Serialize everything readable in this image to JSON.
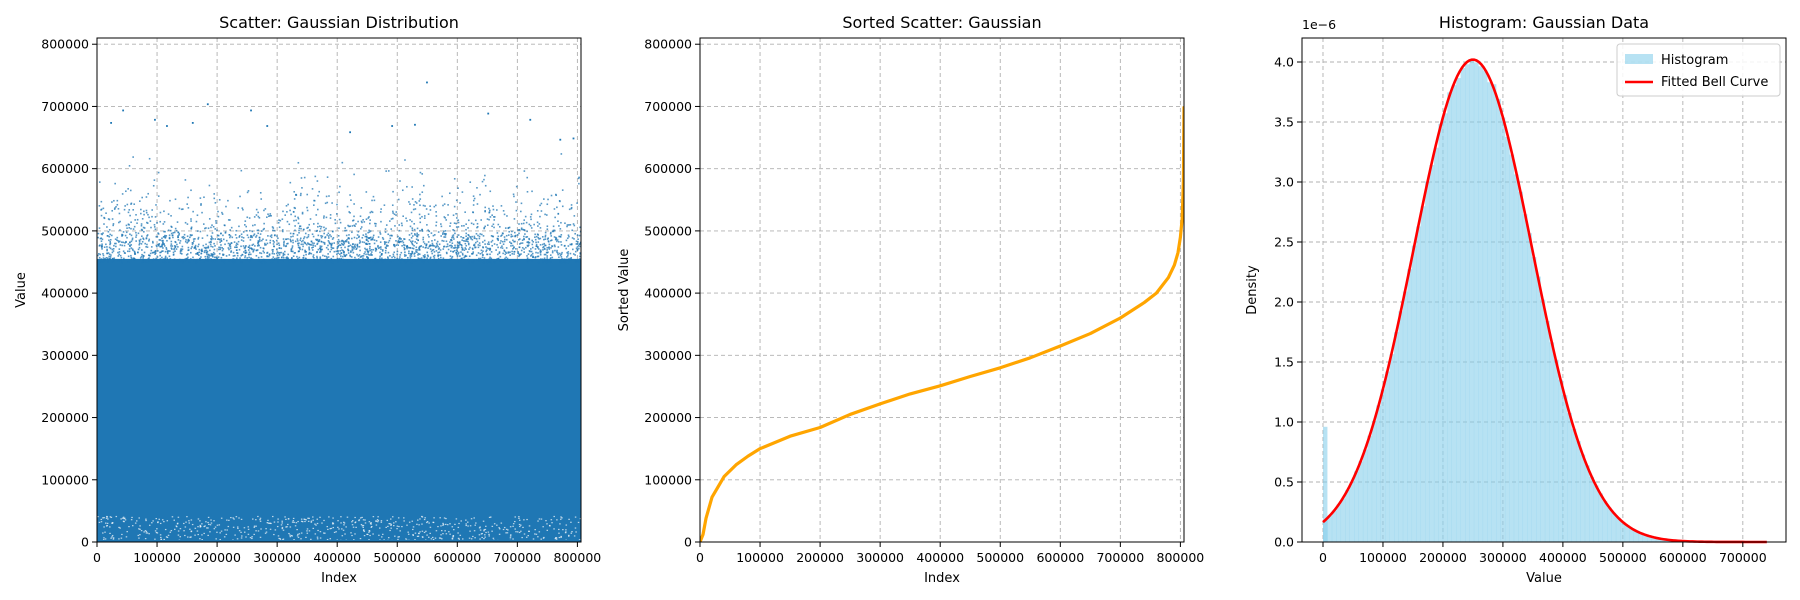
{
  "chart_data": [
    {
      "type": "scatter",
      "title": "Scatter: Gaussian Distribution",
      "xlabel": "Index",
      "ylabel": "Value",
      "xlim": [
        0,
        806000
      ],
      "ylim": [
        0,
        810000
      ],
      "xticks": [
        0,
        100000,
        200000,
        300000,
        400000,
        500000,
        600000,
        700000,
        800000
      ],
      "yticks": [
        0,
        100000,
        200000,
        300000,
        400000,
        500000,
        600000,
        700000,
        800000
      ],
      "grid": true,
      "colors": {
        "points": "#1f77b4"
      },
      "distribution": {
        "mean": 250000,
        "std": 100000,
        "clipped_at": 0,
        "n_points": 806000
      },
      "outliers": [
        {
          "x": 22000,
          "y": 675000
        },
        {
          "x": 42000,
          "y": 695000
        },
        {
          "x": 95000,
          "y": 680000
        },
        {
          "x": 115000,
          "y": 670000
        },
        {
          "x": 158000,
          "y": 675000
        },
        {
          "x": 183000,
          "y": 705000
        },
        {
          "x": 255000,
          "y": 695000
        },
        {
          "x": 282000,
          "y": 670000
        },
        {
          "x": 420000,
          "y": 660000
        },
        {
          "x": 490000,
          "y": 670000
        },
        {
          "x": 528000,
          "y": 672000
        },
        {
          "x": 548000,
          "y": 740000
        },
        {
          "x": 650000,
          "y": 690000
        },
        {
          "x": 720000,
          "y": 680000
        },
        {
          "x": 770000,
          "y": 648000
        },
        {
          "x": 792000,
          "y": 650000
        }
      ]
    },
    {
      "type": "line",
      "title": "Sorted Scatter: Gaussian",
      "xlabel": "Index",
      "ylabel": "Sorted Value",
      "xlim": [
        0,
        806000
      ],
      "ylim": [
        0,
        810000
      ],
      "xticks": [
        0,
        100000,
        200000,
        300000,
        400000,
        500000,
        600000,
        700000,
        800000
      ],
      "yticks": [
        0,
        100000,
        200000,
        300000,
        400000,
        500000,
        600000,
        700000,
        800000
      ],
      "grid": true,
      "colors": {
        "line": "#ffa500"
      },
      "x": [
        0,
        5000,
        10000,
        20000,
        40000,
        60000,
        80000,
        100000,
        150000,
        200000,
        250000,
        300000,
        350000,
        400000,
        450000,
        500000,
        550000,
        600000,
        650000,
        700000,
        740000,
        760000,
        780000,
        790000,
        796000,
        800000,
        803000,
        805000,
        806000
      ],
      "y": [
        0,
        12000,
        38000,
        72000,
        105000,
        124000,
        138000,
        150000,
        170000,
        184000,
        205000,
        222000,
        238000,
        251000,
        266000,
        280000,
        296000,
        315000,
        335000,
        360000,
        385000,
        400000,
        425000,
        445000,
        465000,
        490000,
        520000,
        580000,
        700000
      ]
    },
    {
      "type": "histogram",
      "title": "Histogram: Gaussian Data",
      "xlabel": "Value",
      "ylabel": "Density",
      "offset_label": "1e−6",
      "xlim": [
        -35000,
        772000
      ],
      "ylim": [
        0,
        4.2
      ],
      "xticks": [
        0,
        100000,
        200000,
        300000,
        400000,
        500000,
        600000,
        700000
      ],
      "yticks": [
        0.0,
        0.5,
        1.0,
        1.5,
        2.0,
        2.5,
        3.0,
        3.5,
        4.0
      ],
      "ytick_labels": [
        "0.0",
        "0.5",
        "1.0",
        "1.5",
        "2.0",
        "2.5",
        "3.0",
        "3.5",
        "4.0"
      ],
      "grid": true,
      "legend": {
        "position": "top-right",
        "entries": [
          "Histogram",
          "Fitted Bell Curve"
        ]
      },
      "colors": {
        "bars": "#87ceeb",
        "curve": "#ff0000"
      },
      "fit": {
        "mean": 250000,
        "std": 99000,
        "peak": 4.02
      },
      "spike": {
        "x": 0,
        "density": 0.96
      },
      "xrange": [
        0,
        740000
      ]
    }
  ]
}
